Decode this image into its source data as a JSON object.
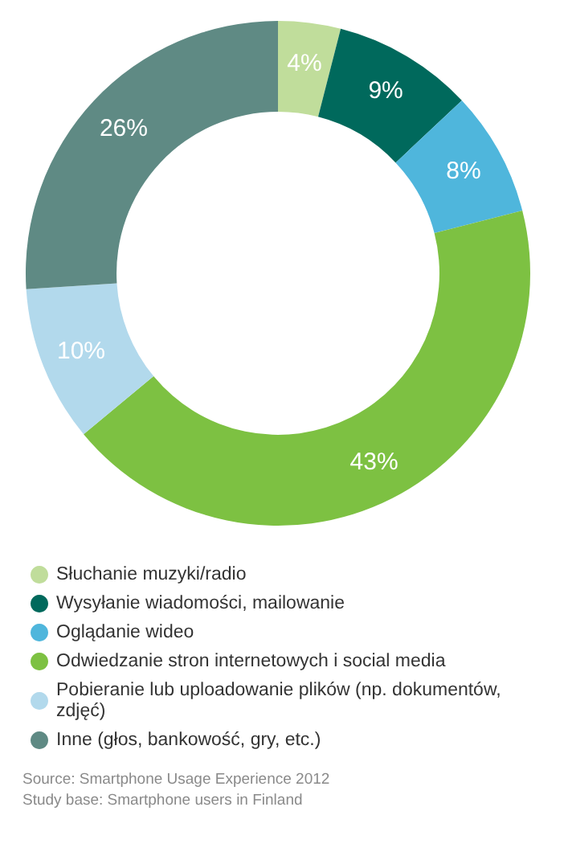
{
  "chart_data": {
    "type": "donut",
    "categories": [
      "Słuchanie muzyki/radio",
      "Wysyłanie wiadomości, mailowanie",
      "Oglądanie wideo",
      "Odwiedzanie stron internetowych i social media",
      "Pobieranie lub uploadowanie plików (np. dokumentów, zdjęć)",
      "Inne (głos, bankowość, gry, etc.)"
    ],
    "values": [
      4,
      9,
      8,
      43,
      10,
      26
    ],
    "value_labels": [
      "4%",
      "9%",
      "8%",
      "43%",
      "10%",
      "26%"
    ],
    "colors": [
      "#c0dd9b",
      "#00695c",
      "#4fb6dc",
      "#7dc142",
      "#b2d9ec",
      "#5f8a84"
    ],
    "legend": "bottom",
    "annotations": [
      "Source: Smartphone Usage Experience 2012",
      "Study base: Smartphone users in Finland"
    ]
  }
}
